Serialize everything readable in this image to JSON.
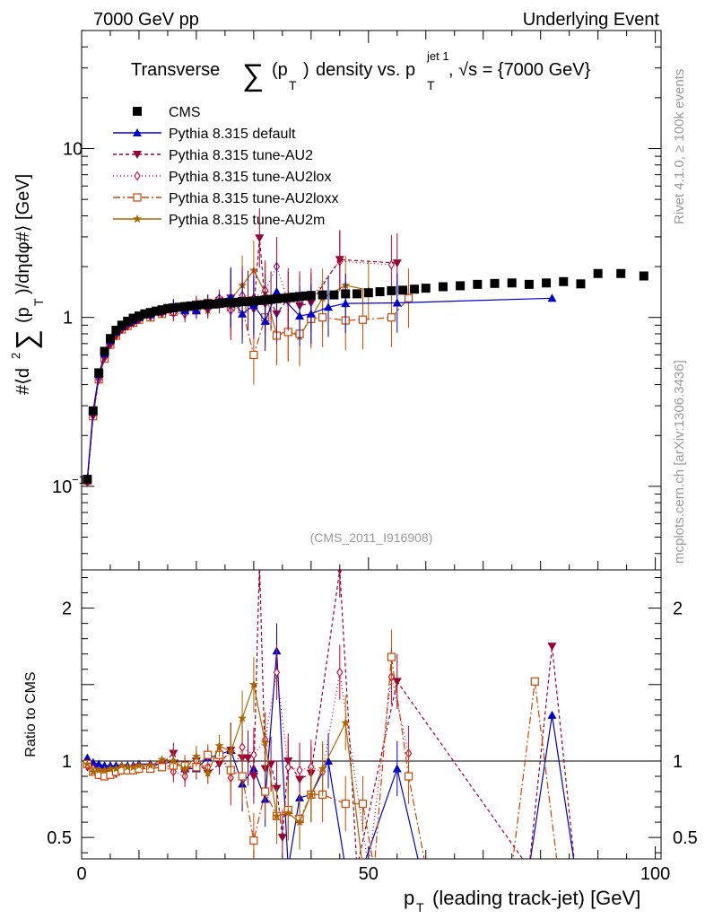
{
  "header": {
    "left": "7000 GeV pp",
    "right": "Underlying Event"
  },
  "chart_data": [
    {
      "type": "scatter",
      "title": "Transverse ∑(pT) density vs. pTjet 1, √s = {7000 GeV}",
      "title_parts": {
        "prefix": "Transverse",
        "sum": "∑",
        "p": "(p",
        "T": "T",
        "close": ")",
        "mid": "density vs. p",
        "jet": "jet 1",
        "sqrt": ", √s = {7000 GeV}"
      },
      "ylabel": "#⟨d² ∑(pT)/dηdφ#⟩ [GeV]",
      "ylabel_parts": {
        "a": "#⟨d",
        "sq": "2",
        "sum": "∑",
        "b": "(p",
        "T": "T",
        "c": ")/dηdφ#⟩ [GeV]"
      },
      "yscale": "log",
      "ylim": [
        0.032,
        50
      ],
      "xlim": [
        0,
        101
      ],
      "yticks": [
        {
          "v": 0.1,
          "base": "10",
          "exp": "−1"
        },
        {
          "v": 1,
          "base": "1",
          "exp": ""
        },
        {
          "v": 10,
          "base": "10",
          "exp": ""
        }
      ],
      "analysis_label": "(CMS_2011_I916908)",
      "legend": [
        {
          "name": "CMS",
          "color": "#000000",
          "marker": "square",
          "dash": ""
        },
        {
          "name": "Pythia 8.315 default",
          "color": "#0000cc",
          "marker": "triangle-up",
          "dash": ""
        },
        {
          "name": "Pythia 8.315 tune-AU2",
          "color": "#990033",
          "marker": "triangle-down",
          "dash": "4,3"
        },
        {
          "name": "Pythia 8.315 tune-AU2lox",
          "color": "#cc0033",
          "marker": "diamond",
          "dash": "1,3"
        },
        {
          "name": "Pythia 8.315 tune-AU2loxx",
          "color": "#cc4400",
          "marker": "square-open",
          "dash": "8,3,2,3"
        },
        {
          "name": "Pythia 8.315 tune-AU2m",
          "color": "#aa6600",
          "marker": "star",
          "dash": ""
        }
      ],
      "series": [
        {
          "name": "CMS",
          "x": [
            1,
            2,
            3,
            4,
            5,
            6,
            7,
            8,
            9,
            10,
            11,
            12,
            13,
            14,
            15,
            16,
            17,
            18,
            19,
            20,
            21,
            22,
            23,
            24,
            25,
            26,
            27,
            28,
            29,
            30,
            31,
            32,
            33,
            34,
            35,
            36,
            37,
            38,
            39,
            40,
            42,
            44,
            46,
            48,
            50,
            52,
            54,
            56,
            58,
            60,
            63,
            66,
            69,
            72,
            75,
            78,
            81,
            84,
            87,
            90,
            94,
            98
          ],
          "y": [
            0.11,
            0.28,
            0.47,
            0.63,
            0.75,
            0.84,
            0.9,
            0.95,
            0.99,
            1.02,
            1.05,
            1.07,
            1.09,
            1.11,
            1.13,
            1.14,
            1.15,
            1.16,
            1.17,
            1.18,
            1.19,
            1.2,
            1.2,
            1.21,
            1.22,
            1.22,
            1.23,
            1.24,
            1.24,
            1.25,
            1.26,
            1.27,
            1.28,
            1.29,
            1.3,
            1.31,
            1.32,
            1.33,
            1.34,
            1.35,
            1.36,
            1.36,
            1.38,
            1.38,
            1.4,
            1.42,
            1.44,
            1.45,
            1.47,
            1.49,
            1.52,
            1.54,
            1.57,
            1.59,
            1.6,
            1.57,
            1.6,
            1.63,
            1.58,
            1.82,
            1.82,
            1.76
          ]
        },
        {
          "name": "Pythia 8.315 default",
          "x": [
            1,
            2,
            3,
            4,
            5,
            6,
            7,
            8,
            9,
            10,
            12,
            14,
            16,
            18,
            20,
            22,
            24,
            26,
            28,
            30,
            32,
            34,
            38,
            40,
            43,
            46,
            55,
            82
          ],
          "y": [
            0.112,
            0.28,
            0.46,
            0.61,
            0.73,
            0.82,
            0.88,
            0.93,
            0.96,
            1.0,
            1.04,
            1.09,
            1.14,
            1.1,
            1.1,
            1.22,
            1.26,
            1.32,
            1.05,
            1.18,
            0.95,
            1.42,
            1.02,
            1.05,
            1.15,
            1.21,
            1.22,
            1.3
          ]
        },
        {
          "name": "Pythia 8.315 tune-AU2",
          "x": [
            1,
            2,
            3,
            4,
            5,
            6,
            7,
            8,
            9,
            10,
            12,
            14,
            16,
            18,
            20,
            22,
            24,
            26,
            28,
            29,
            30,
            31,
            32,
            33,
            34,
            36,
            38,
            40,
            45,
            55
          ],
          "y": [
            0.105,
            0.26,
            0.44,
            0.58,
            0.7,
            0.79,
            0.86,
            0.9,
            0.93,
            0.98,
            1.01,
            1.07,
            1.15,
            1.08,
            1.18,
            1.11,
            1.18,
            1.3,
            1.26,
            1.26,
            1.12,
            2.95,
            1.2,
            1.25,
            1.05,
            1.3,
            1.17,
            1.22,
            2.2,
            2.1
          ]
        },
        {
          "name": "Pythia 8.315 tune-AU2lox",
          "x": [
            1,
            2,
            3,
            4,
            5,
            6,
            7,
            8,
            9,
            10,
            12,
            14,
            16,
            18,
            20,
            22,
            24,
            26,
            28,
            30,
            32,
            34,
            36,
            38,
            40,
            45,
            54
          ],
          "y": [
            0.107,
            0.27,
            0.43,
            0.58,
            0.69,
            0.78,
            0.85,
            0.89,
            0.93,
            0.97,
            1.02,
            1.06,
            1.06,
            1.05,
            1.2,
            1.15,
            1.3,
            1.1,
            1.35,
            1.3,
            1.45,
            2.0,
            1.25,
            1.25,
            1.3,
            2.15,
            2.05
          ]
        },
        {
          "name": "Pythia 8.315 tune-AU2loxx",
          "x": [
            1,
            2,
            3,
            4,
            5,
            6,
            7,
            8,
            9,
            10,
            12,
            14,
            16,
            18,
            20,
            22,
            24,
            26,
            28,
            30,
            32,
            34,
            36,
            38,
            40,
            42,
            46,
            49,
            54,
            57
          ],
          "y": [
            0.108,
            0.26,
            0.43,
            0.57,
            0.69,
            0.78,
            0.85,
            0.89,
            0.93,
            0.97,
            1.0,
            1.05,
            1.08,
            1.1,
            1.1,
            1.22,
            1.25,
            1.15,
            1.12,
            0.6,
            1.0,
            0.78,
            0.82,
            0.8,
            0.98,
            1.0,
            0.96,
            0.97,
            1.0,
            1.3
          ]
        },
        {
          "name": "Pythia 8.315 tune-AU2m",
          "x": [
            1,
            2,
            3,
            4,
            5,
            6,
            7,
            8,
            9,
            10,
            12,
            14,
            16,
            18,
            20,
            22,
            24,
            26,
            28,
            30,
            32,
            34,
            36,
            38,
            40,
            42,
            46,
            50
          ],
          "y": [
            0.108,
            0.26,
            0.44,
            0.59,
            0.71,
            0.8,
            0.87,
            0.91,
            0.95,
            0.99,
            1.02,
            1.1,
            1.12,
            1.1,
            1.2,
            1.1,
            1.3,
            1.28,
            1.55,
            1.9,
            1.4,
            0.79,
            0.83,
            0.77,
            1.0,
            1.3,
            1.55,
            1.45
          ]
        }
      ]
    },
    {
      "type": "line",
      "ylabel": "Ratio to CMS",
      "ylim": [
        0.36,
        2.25
      ],
      "xlim": [
        0,
        101
      ],
      "yticks": [
        0.5,
        1,
        2
      ],
      "xticks": [
        0,
        50,
        100
      ],
      "xlabel": "pT (leading track-jet) [GeV]",
      "xlabel_parts": {
        "p": "p",
        "T": "T",
        "rest": "(leading track-jet) [GeV]"
      },
      "series": [
        {
          "name": "Pythia 8.315 default",
          "x": [
            1,
            2,
            3,
            4,
            5,
            6,
            7,
            8,
            9,
            10,
            12,
            14,
            16,
            18,
            20,
            22,
            24,
            26,
            28,
            30,
            32,
            34,
            36,
            38,
            40,
            43,
            46,
            49,
            55,
            59,
            78,
            82,
            86
          ],
          "y": [
            1.02,
            0.99,
            0.98,
            0.97,
            0.97,
            0.97,
            0.97,
            0.97,
            0.97,
            0.98,
            0.98,
            0.98,
            1.0,
            0.95,
            0.95,
            1.02,
            1.04,
            1.07,
            0.85,
            0.95,
            0.75,
            1.72,
            0.3,
            0.76,
            0.78,
            1.0,
            0.3,
            0.3,
            0.95,
            0.3,
            0.3,
            1.3,
            0.3
          ]
        },
        {
          "name": "Pythia 8.315 tune-AU2",
          "x": [
            1,
            2,
            3,
            4,
            5,
            6,
            7,
            8,
            9,
            10,
            12,
            14,
            16,
            18,
            20,
            22,
            24,
            26,
            28,
            29,
            30,
            31,
            32,
            33,
            34,
            35,
            36,
            38,
            40,
            45,
            48,
            55,
            78,
            82,
            86
          ],
          "y": [
            0.96,
            0.93,
            0.93,
            0.92,
            0.92,
            0.93,
            0.94,
            0.94,
            0.95,
            0.96,
            0.96,
            0.98,
            1.05,
            0.93,
            1.0,
            0.92,
            0.98,
            1.07,
            1.02,
            1.02,
            0.9,
            2.3,
            0.95,
            0.98,
            0.82,
            0.5,
            1.0,
            0.88,
            0.92,
            2.25,
            0.3,
            1.52,
            0.3,
            1.75,
            0.3
          ]
        },
        {
          "name": "Pythia 8.315 tune-AU2lox",
          "x": [
            1,
            2,
            3,
            4,
            5,
            6,
            7,
            8,
            9,
            10,
            12,
            14,
            16,
            18,
            20,
            22,
            24,
            26,
            28,
            30,
            32,
            34,
            36,
            38,
            40,
            42,
            45,
            50,
            54,
            57
          ],
          "y": [
            0.97,
            0.95,
            0.91,
            0.92,
            0.92,
            0.92,
            0.94,
            0.94,
            0.94,
            0.95,
            0.97,
            0.97,
            0.93,
            0.9,
            1.0,
            0.96,
            1.06,
            0.89,
            1.09,
            1.04,
            1.14,
            1.58,
            0.96,
            0.94,
            0.96,
            0.93,
            1.58,
            0.3,
            1.55,
            1.05
          ]
        },
        {
          "name": "Pythia 8.315 tune-AU2loxx",
          "x": [
            1,
            2,
            3,
            4,
            5,
            6,
            7,
            8,
            9,
            10,
            12,
            14,
            16,
            18,
            20,
            22,
            24,
            26,
            28,
            30,
            32,
            34,
            36,
            38,
            40,
            42,
            46,
            49,
            51,
            54,
            57,
            60,
            75,
            79,
            83
          ],
          "y": [
            0.98,
            0.93,
            0.91,
            0.9,
            0.91,
            0.93,
            0.94,
            0.94,
            0.94,
            0.95,
            0.95,
            0.96,
            0.97,
            0.97,
            0.96,
            1.04,
            1.04,
            0.94,
            0.9,
            0.48,
            0.8,
            0.64,
            0.68,
            0.62,
            0.78,
            0.78,
            0.72,
            0.72,
            0.3,
            1.68,
            0.9,
            0.3,
            0.3,
            1.52,
            0.3
          ]
        },
        {
          "name": "Pythia 8.315 tune-AU2m",
          "x": [
            1,
            2,
            3,
            4,
            5,
            6,
            7,
            8,
            9,
            10,
            12,
            14,
            16,
            18,
            20,
            22,
            24,
            26,
            28,
            30,
            32,
            34,
            36,
            38,
            40,
            42,
            46,
            49
          ],
          "y": [
            0.98,
            0.93,
            0.94,
            0.94,
            0.95,
            0.95,
            0.97,
            0.96,
            0.96,
            0.97,
            0.97,
            1.01,
            1.0,
            0.95,
            1.03,
            0.92,
            1.1,
            1.06,
            1.28,
            1.5,
            1.12,
            0.64,
            0.66,
            0.6,
            0.78,
            0.95,
            1.25,
            0.3
          ]
        }
      ]
    }
  ],
  "side_labels": {
    "rivet": "Rivet 4.1.0, ≥ 100k events",
    "mcplots": "mcplots.cern.ch [arXiv:1306.3436]"
  }
}
